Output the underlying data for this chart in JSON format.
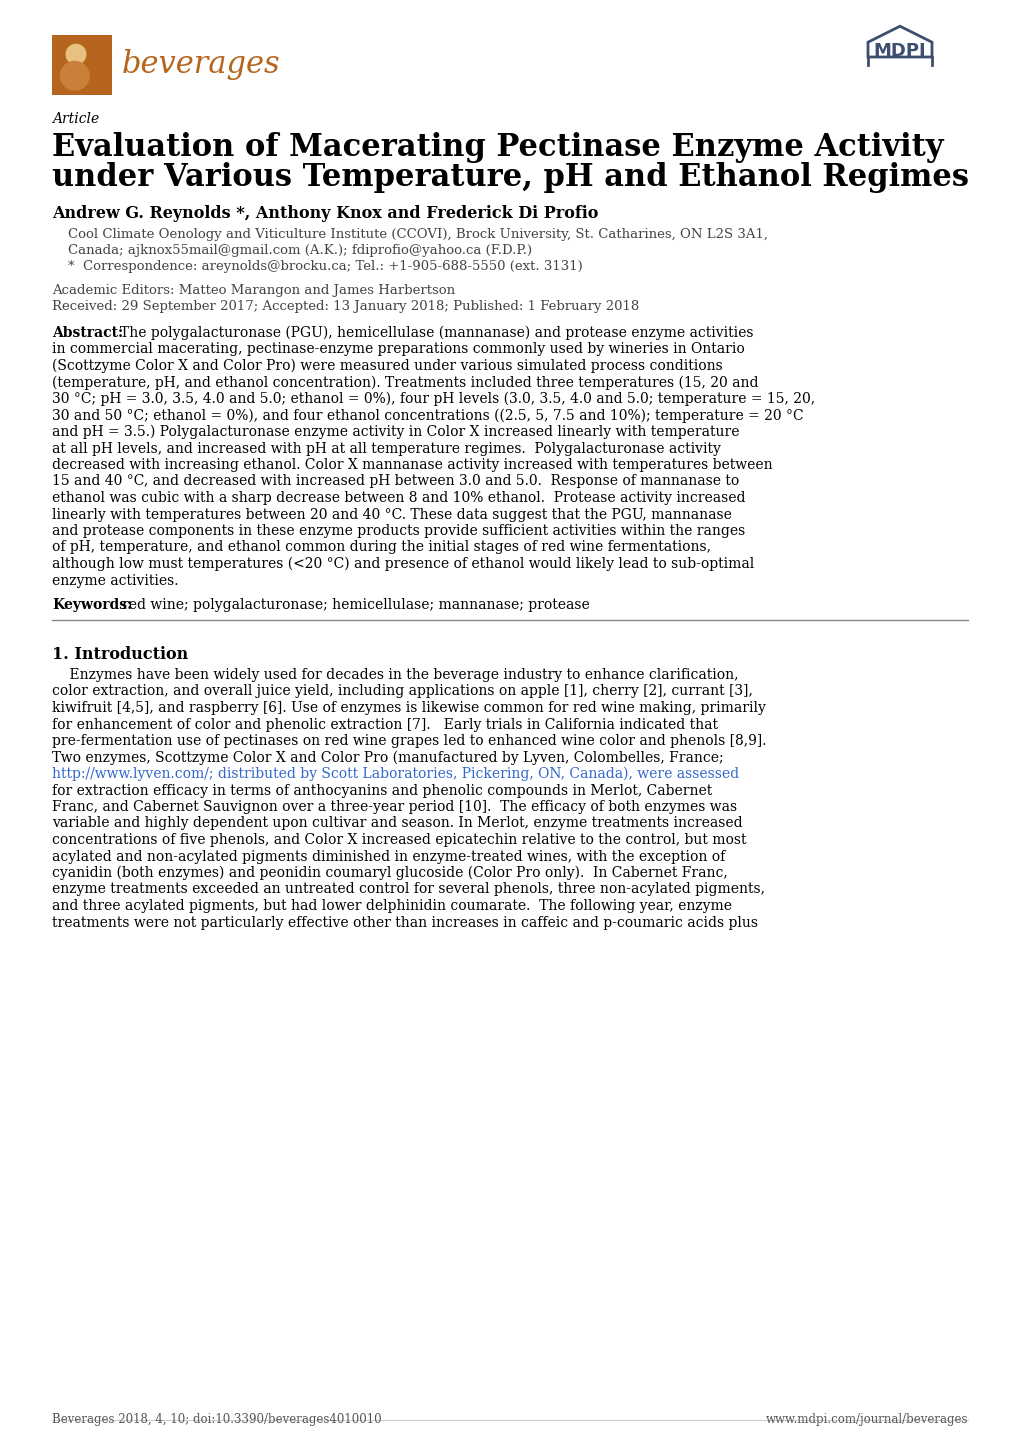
{
  "page_bg": "#ffffff",
  "logo_color": "#b5651d",
  "logo_box_color": "#b5651d",
  "mdpi_color": "#3d4f6e",
  "article_label": "Article",
  "title_line1": "Evaluation of Macerating Pectinase Enzyme Activity",
  "title_line2": "under Various Temperature, pH and Ethanol Regimes",
  "authors": "Andrew G. Reynolds *, Anthony Knox and Frederick Di Profio",
  "affil1": "Cool Climate Oenology and Viticulture Institute (CCOVI), Brock University, St. Catharines, ON L2S 3A1,",
  "affil2": "Canada; ajknox55mail@gmail.com (A.K.); fdiprofio@yahoo.ca (F.D.P.)",
  "correspondence": "*  Correspondence: areynolds@brocku.ca; Tel.: +1-905-688-5550 (ext. 3131)",
  "editors": "Academic Editors: Matteo Marangon and James Harbertson",
  "received": "Received: 29 September 2017; Accepted: 13 January 2018; Published: 1 February 2018",
  "abstract_lines": [
    "The polygalacturonase (PGU), hemicellulase (mannanase) and protease enzyme activities",
    "in commercial macerating, pectinase-enzyme preparations commonly used by wineries in Ontario",
    "(Scottzyme Color X and Color Pro) were measured under various simulated process conditions",
    "(temperature, pH, and ethanol concentration). Treatments included three temperatures (15, 20 and",
    "30 °C; pH = 3.0, 3.5, 4.0 and 5.0; ethanol = 0%), four pH levels (3.0, 3.5, 4.0 and 5.0; temperature = 15, 20,",
    "30 and 50 °C; ethanol = 0%), and four ethanol concentrations ((2.5, 5, 7.5 and 10%); temperature = 20 °C",
    "and pH = 3.5.) Polygalacturonase enzyme activity in Color X increased linearly with temperature",
    "at all pH levels, and increased with pH at all temperature regimes.  Polygalacturonase activity",
    "decreased with increasing ethanol. Color X mannanase activity increased with temperatures between",
    "15 and 40 °C, and decreased with increased pH between 3.0 and 5.0.  Response of mannanase to",
    "ethanol was cubic with a sharp decrease between 8 and 10% ethanol.  Protease activity increased",
    "linearly with temperatures between 20 and 40 °C. These data suggest that the PGU, mannanase",
    "and protease components in these enzyme products provide sufficient activities within the ranges",
    "of pH, temperature, and ethanol common during the initial stages of red wine fermentations,",
    "although low must temperatures (<20 °C) and presence of ethanol would likely lead to sub-optimal",
    "enzyme activities."
  ],
  "keywords_text": "red wine; polygalacturonase; hemicellulase; mannanase; protease",
  "section1_title": "1. Introduction",
  "intro_lines": [
    "    Enzymes have been widely used for decades in the beverage industry to enhance clarification,",
    "color extraction, and overall juice yield, including applications on apple [1], cherry [2], currant [3],",
    "kiwifruit [4,5], and raspberry [6]. Use of enzymes is likewise common for red wine making, primarily",
    "for enhancement of color and phenolic extraction [7].   Early trials in California indicated that",
    "pre-fermentation use of pectinases on red wine grapes led to enhanced wine color and phenols [8,9].",
    "Two enzymes, Scottzyme Color X and Color Pro (manufactured by Lyven, Colombelles, France;",
    "http://www.lyven.com/; distributed by Scott Laboratories, Pickering, ON, Canada), were assessed",
    "for extraction efficacy in terms of anthocyanins and phenolic compounds in Merlot, Cabernet",
    "Franc, and Cabernet Sauvignon over a three-year period [10].  The efficacy of both enzymes was",
    "variable and highly dependent upon cultivar and season. In Merlot, enzyme treatments increased",
    "concentrations of five phenols, and Color X increased epicatechin relative to the control, but most",
    "acylated and non-acylated pigments diminished in enzyme-treated wines, with the exception of",
    "cyanidin (both enzymes) and peonidin coumaryl glucoside (Color Pro only).  In Cabernet Franc,",
    "enzyme treatments exceeded an untreated control for several phenols, three non-acylated pigments,",
    "and three acylated pigments, but had lower delphinidin coumarate.  The following year, enzyme",
    "treatments were not particularly effective other than increases in caffeic and p-coumaric acids plus"
  ],
  "intro_link_line": 6,
  "link_color": "#3366cc",
  "footer_left": "Beverages 2018, 4, 10; doi:10.3390/beverages4010010",
  "footer_right": "www.mdpi.com/journal/beverages",
  "text_color": "#000000",
  "gray_color": "#444444"
}
